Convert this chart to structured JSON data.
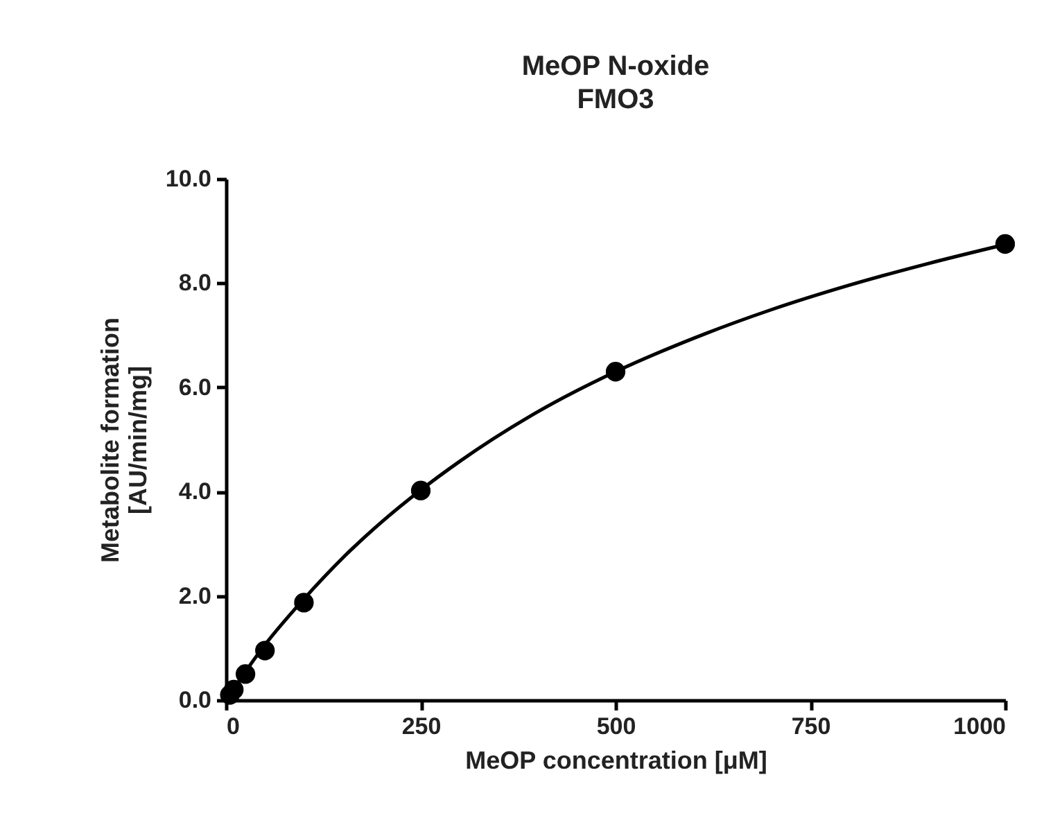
{
  "chart_data": {
    "type": "scatter",
    "title": "MeOP N-oxide",
    "subtitle": "FMO3",
    "xlabel": "MeOP concentration [μM]",
    "ylabel": "Metabolite formation\n[AU/min/mg]",
    "xlim": [
      0,
      1000
    ],
    "xticks": [
      0,
      250,
      500,
      750,
      1000
    ],
    "ylim": [
      0,
      10
    ],
    "yticks": [
      {
        "value": 0,
        "label": "0.0"
      },
      {
        "value": 2,
        "label": "2.0"
      },
      {
        "value": 4,
        "label": "4.0"
      },
      {
        "value": 6,
        "label": "6.0"
      },
      {
        "value": 8,
        "label": "8.0"
      },
      {
        "value": 10,
        "label": "10.0"
      }
    ],
    "grid": false,
    "series": [
      {
        "marker": "circle",
        "color": "#000000",
        "x": [
          5,
          10,
          25,
          50,
          100,
          250,
          500,
          1000
        ],
        "values": [
          0.1,
          0.2,
          0.5,
          0.95,
          1.87,
          4.02,
          6.3,
          8.75
        ]
      },
      {
        "type": "line",
        "color": "#000000",
        "line_style": "solid",
        "x": [
          0,
          50,
          100,
          150,
          200,
          250,
          300,
          400,
          500,
          600,
          700,
          800,
          900,
          1000
        ],
        "values": [
          0,
          1.06,
          1.94,
          2.73,
          3.42,
          4.03,
          4.58,
          5.53,
          6.3,
          6.94,
          7.49,
          7.96,
          8.37,
          8.74
        ]
      }
    ]
  }
}
